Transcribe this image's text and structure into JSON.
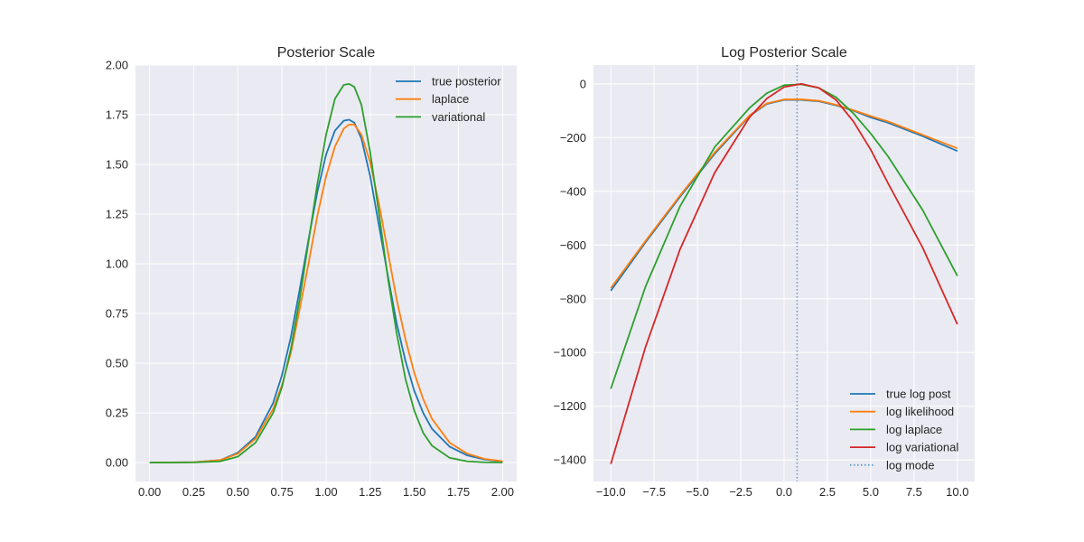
{
  "chart_data": [
    {
      "type": "line",
      "title": "Posterior Scale",
      "xlabel": "",
      "ylabel": "",
      "xlim": [
        -0.08,
        2.08
      ],
      "ylim": [
        -0.095,
        2.0
      ],
      "xticks": [
        0.0,
        0.25,
        0.5,
        0.75,
        1.0,
        1.25,
        1.5,
        1.75,
        2.0
      ],
      "xtick_labels": [
        "0.00",
        "0.25",
        "0.50",
        "0.75",
        "1.00",
        "1.25",
        "1.50",
        "1.75",
        "2.00"
      ],
      "yticks": [
        0.0,
        0.25,
        0.5,
        0.75,
        1.0,
        1.25,
        1.5,
        1.75,
        2.0
      ],
      "ytick_labels": [
        "0.00",
        "0.25",
        "0.50",
        "0.75",
        "1.00",
        "1.25",
        "1.50",
        "1.75",
        "2.00"
      ],
      "grid": true,
      "legend": "top-right",
      "background": "#eaeaf2",
      "x": [
        0.0,
        0.25,
        0.4,
        0.5,
        0.6,
        0.7,
        0.75,
        0.8,
        0.85,
        0.9,
        0.95,
        1.0,
        1.05,
        1.1,
        1.13,
        1.16,
        1.2,
        1.25,
        1.3,
        1.35,
        1.4,
        1.45,
        1.5,
        1.55,
        1.6,
        1.7,
        1.8,
        1.9,
        2.0
      ],
      "series": [
        {
          "name": "true posterior",
          "color": "#1f77b4",
          "values": [
            0.0,
            0.002,
            0.012,
            0.05,
            0.13,
            0.3,
            0.44,
            0.63,
            0.87,
            1.12,
            1.36,
            1.55,
            1.67,
            1.72,
            1.725,
            1.71,
            1.63,
            1.44,
            1.19,
            0.94,
            0.7,
            0.51,
            0.36,
            0.25,
            0.17,
            0.08,
            0.036,
            0.015,
            0.005
          ]
        },
        {
          "name": "laplace",
          "color": "#ff7f0e",
          "values": [
            0.0,
            0.002,
            0.012,
            0.045,
            0.12,
            0.27,
            0.39,
            0.55,
            0.77,
            1.0,
            1.24,
            1.44,
            1.59,
            1.68,
            1.7,
            1.7,
            1.65,
            1.51,
            1.3,
            1.06,
            0.82,
            0.62,
            0.45,
            0.32,
            0.22,
            0.1,
            0.045,
            0.018,
            0.007
          ]
        },
        {
          "name": "variational",
          "color": "#2ca02c",
          "values": [
            0.0,
            0.001,
            0.006,
            0.03,
            0.1,
            0.25,
            0.38,
            0.57,
            0.82,
            1.11,
            1.4,
            1.65,
            1.83,
            1.9,
            1.905,
            1.89,
            1.8,
            1.56,
            1.25,
            0.93,
            0.65,
            0.42,
            0.26,
            0.15,
            0.085,
            0.024,
            0.006,
            0.0015,
            0.0003
          ]
        }
      ]
    },
    {
      "type": "line",
      "title": "Log Posterior Scale",
      "xlabel": "",
      "ylabel": "",
      "xlim": [
        -11.0,
        11.0
      ],
      "ylim": [
        -1480,
        70
      ],
      "xticks": [
        -10.0,
        -7.5,
        -5.0,
        -2.5,
        0.0,
        2.5,
        5.0,
        7.5,
        10.0
      ],
      "xtick_labels": [
        "−10.0",
        "−7.5",
        "−5.0",
        "−2.5",
        "0.0",
        "2.5",
        "5.0",
        "7.5",
        "10.0"
      ],
      "yticks": [
        0,
        -200,
        -400,
        -600,
        -800,
        -1000,
        -1200,
        -1400
      ],
      "ytick_labels": [
        "0",
        "−200",
        "−400",
        "−600",
        "−800",
        "−1000",
        "−1200",
        "−1400"
      ],
      "grid": true,
      "legend": "bottom-right",
      "background": "#eaeaf2",
      "x": [
        -10.0,
        -8.0,
        -6.0,
        -4.0,
        -2.0,
        -1.0,
        0.0,
        1.0,
        2.0,
        3.0,
        4.0,
        5.0,
        6.0,
        8.0,
        10.0
      ],
      "series": [
        {
          "name": "true log post",
          "color": "#1f77b4",
          "values": [
            -770,
            -590,
            -420,
            -260,
            -120,
            -75,
            -60,
            -60,
            -65,
            -80,
            -100,
            -125,
            -145,
            -195,
            -250
          ]
        },
        {
          "name": "log likelihood",
          "color": "#ff7f0e",
          "values": [
            -760,
            -585,
            -415,
            -255,
            -118,
            -73,
            -58,
            -58,
            -63,
            -78,
            -98,
            -120,
            -140,
            -190,
            -240
          ]
        },
        {
          "name": "log laplace",
          "color": "#2ca02c",
          "values": [
            -1135,
            -755,
            -455,
            -235,
            -90,
            -35,
            -5,
            -2,
            -15,
            -50,
            -110,
            -185,
            -270,
            -470,
            -715
          ]
        },
        {
          "name": "log variational",
          "color": "#d62728",
          "values": [
            -1415,
            -980,
            -615,
            -330,
            -125,
            -55,
            -12,
            0,
            -15,
            -60,
            -140,
            -245,
            -370,
            -610,
            -895
          ]
        }
      ],
      "vline": {
        "name": "log mode",
        "x": 0.75,
        "color": "#1f77b4",
        "style": "dotted"
      }
    }
  ]
}
